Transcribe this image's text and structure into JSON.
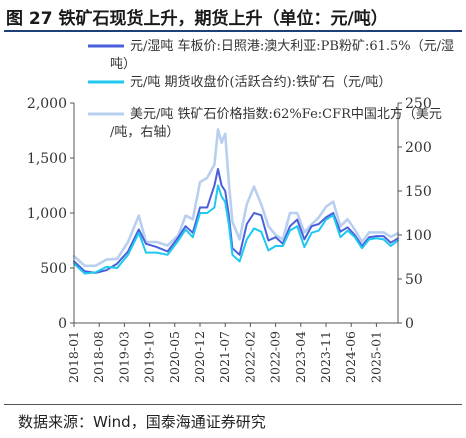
{
  "title": "图 27  铁矿石现货上升，期货上升（单位：元/吨）",
  "source": "数据来源：Wind，国泰海通证券研究",
  "chart_data": {
    "type": "line",
    "left_axis": {
      "min": 0,
      "max": 2000,
      "ticks": [
        0,
        500,
        1000,
        1500,
        2000
      ],
      "tick_labels": [
        "0",
        "500",
        "1,000",
        "1,500",
        "2,000"
      ]
    },
    "right_axis": {
      "min": 0,
      "max": 250,
      "ticks": [
        0,
        50,
        100,
        150,
        200,
        250
      ],
      "tick_labels": [
        "0",
        "50",
        "100",
        "150",
        "200",
        "250"
      ]
    },
    "x_axis": {
      "start": "2018-01",
      "end": "2025-07",
      "tick_labels": [
        "2018-01",
        "2018-08",
        "2019-03",
        "2019-10",
        "2020-05",
        "2020-12",
        "2021-07",
        "2022-02",
        "2022-09",
        "2023-04",
        "2023-11",
        "2024-06",
        "2025-01"
      ]
    },
    "legend_position": "top",
    "series": [
      {
        "name": "元/湿吨 车板价:日照港:澳大利亚:PB粉矿:61.5%（元/湿吨）",
        "axis": "left",
        "color": "#4a5fdc",
        "points": [
          [
            "2018-01",
            560
          ],
          [
            "2018-04",
            470
          ],
          [
            "2018-07",
            455
          ],
          [
            "2018-10",
            480
          ],
          [
            "2019-01",
            540
          ],
          [
            "2019-04",
            650
          ],
          [
            "2019-07",
            850
          ],
          [
            "2019-09",
            720
          ],
          [
            "2019-12",
            690
          ],
          [
            "2020-03",
            650
          ],
          [
            "2020-06",
            780
          ],
          [
            "2020-08",
            880
          ],
          [
            "2020-10",
            820
          ],
          [
            "2020-12",
            1050
          ],
          [
            "2021-02",
            1050
          ],
          [
            "2021-04",
            1250
          ],
          [
            "2021-05",
            1400
          ],
          [
            "2021-06",
            1250
          ],
          [
            "2021-07",
            1200
          ],
          [
            "2021-08",
            980
          ],
          [
            "2021-09",
            680
          ],
          [
            "2021-11",
            620
          ],
          [
            "2022-01",
            900
          ],
          [
            "2022-03",
            1000
          ],
          [
            "2022-05",
            980
          ],
          [
            "2022-07",
            750
          ],
          [
            "2022-09",
            780
          ],
          [
            "2022-11",
            720
          ],
          [
            "2023-01",
            880
          ],
          [
            "2023-03",
            940
          ],
          [
            "2023-05",
            760
          ],
          [
            "2023-07",
            880
          ],
          [
            "2023-09",
            900
          ],
          [
            "2023-11",
            960
          ],
          [
            "2024-01",
            1000
          ],
          [
            "2024-03",
            830
          ],
          [
            "2024-05",
            870
          ],
          [
            "2024-07",
            800
          ],
          [
            "2024-09",
            700
          ],
          [
            "2024-11",
            780
          ],
          [
            "2025-01",
            790
          ],
          [
            "2025-03",
            790
          ],
          [
            "2025-05",
            730
          ],
          [
            "2025-07",
            770
          ]
        ]
      },
      {
        "name": "元/吨 期货收盘价(活跃合约):铁矿石（元/吨）",
        "axis": "left",
        "color": "#1ec8ee",
        "points": [
          [
            "2018-01",
            540
          ],
          [
            "2018-04",
            450
          ],
          [
            "2018-07",
            460
          ],
          [
            "2018-10",
            510
          ],
          [
            "2019-01",
            500
          ],
          [
            "2019-04",
            620
          ],
          [
            "2019-07",
            820
          ],
          [
            "2019-09",
            640
          ],
          [
            "2019-12",
            640
          ],
          [
            "2020-03",
            620
          ],
          [
            "2020-06",
            750
          ],
          [
            "2020-08",
            850
          ],
          [
            "2020-10",
            780
          ],
          [
            "2020-12",
            1000
          ],
          [
            "2021-02",
            1000
          ],
          [
            "2021-04",
            1050
          ],
          [
            "2021-05",
            1250
          ],
          [
            "2021-06",
            1150
          ],
          [
            "2021-07",
            1100
          ],
          [
            "2021-08",
            900
          ],
          [
            "2021-09",
            620
          ],
          [
            "2021-11",
            560
          ],
          [
            "2022-01",
            760
          ],
          [
            "2022-03",
            860
          ],
          [
            "2022-05",
            830
          ],
          [
            "2022-07",
            660
          ],
          [
            "2022-09",
            700
          ],
          [
            "2022-11",
            700
          ],
          [
            "2023-01",
            840
          ],
          [
            "2023-03",
            880
          ],
          [
            "2023-05",
            690
          ],
          [
            "2023-07",
            820
          ],
          [
            "2023-09",
            840
          ],
          [
            "2023-11",
            940
          ],
          [
            "2024-01",
            980
          ],
          [
            "2024-03",
            780
          ],
          [
            "2024-05",
            840
          ],
          [
            "2024-07",
            780
          ],
          [
            "2024-09",
            680
          ],
          [
            "2024-11",
            760
          ],
          [
            "2025-01",
            770
          ],
          [
            "2025-03",
            760
          ],
          [
            "2025-05",
            700
          ],
          [
            "2025-07",
            750
          ]
        ]
      },
      {
        "name": "美元/吨 铁矿石价格指数:62%Fe:CFR中国北方（美元/吨，右轴）",
        "axis": "right",
        "color": "#b9cff0",
        "points": [
          [
            "2018-01",
            76
          ],
          [
            "2018-04",
            65
          ],
          [
            "2018-07",
            65
          ],
          [
            "2018-10",
            72
          ],
          [
            "2019-01",
            73
          ],
          [
            "2019-04",
            92
          ],
          [
            "2019-07",
            122
          ],
          [
            "2019-09",
            92
          ],
          [
            "2019-12",
            92
          ],
          [
            "2020-03",
            88
          ],
          [
            "2020-06",
            100
          ],
          [
            "2020-08",
            122
          ],
          [
            "2020-10",
            118
          ],
          [
            "2020-12",
            160
          ],
          [
            "2021-02",
            165
          ],
          [
            "2021-04",
            180
          ],
          [
            "2021-05",
            220
          ],
          [
            "2021-06",
            205
          ],
          [
            "2021-07",
            215
          ],
          [
            "2021-08",
            160
          ],
          [
            "2021-09",
            115
          ],
          [
            "2021-11",
            95
          ],
          [
            "2022-01",
            135
          ],
          [
            "2022-03",
            155
          ],
          [
            "2022-05",
            135
          ],
          [
            "2022-07",
            110
          ],
          [
            "2022-09",
            100
          ],
          [
            "2022-11",
            95
          ],
          [
            "2023-01",
            125
          ],
          [
            "2023-03",
            125
          ],
          [
            "2023-05",
            103
          ],
          [
            "2023-07",
            112
          ],
          [
            "2023-09",
            120
          ],
          [
            "2023-11",
            132
          ],
          [
            "2024-01",
            138
          ],
          [
            "2024-03",
            110
          ],
          [
            "2024-05",
            118
          ],
          [
            "2024-07",
            106
          ],
          [
            "2024-09",
            92
          ],
          [
            "2024-11",
            103
          ],
          [
            "2025-01",
            103
          ],
          [
            "2025-03",
            103
          ],
          [
            "2025-05",
            98
          ],
          [
            "2025-07",
            102
          ]
        ]
      }
    ]
  }
}
